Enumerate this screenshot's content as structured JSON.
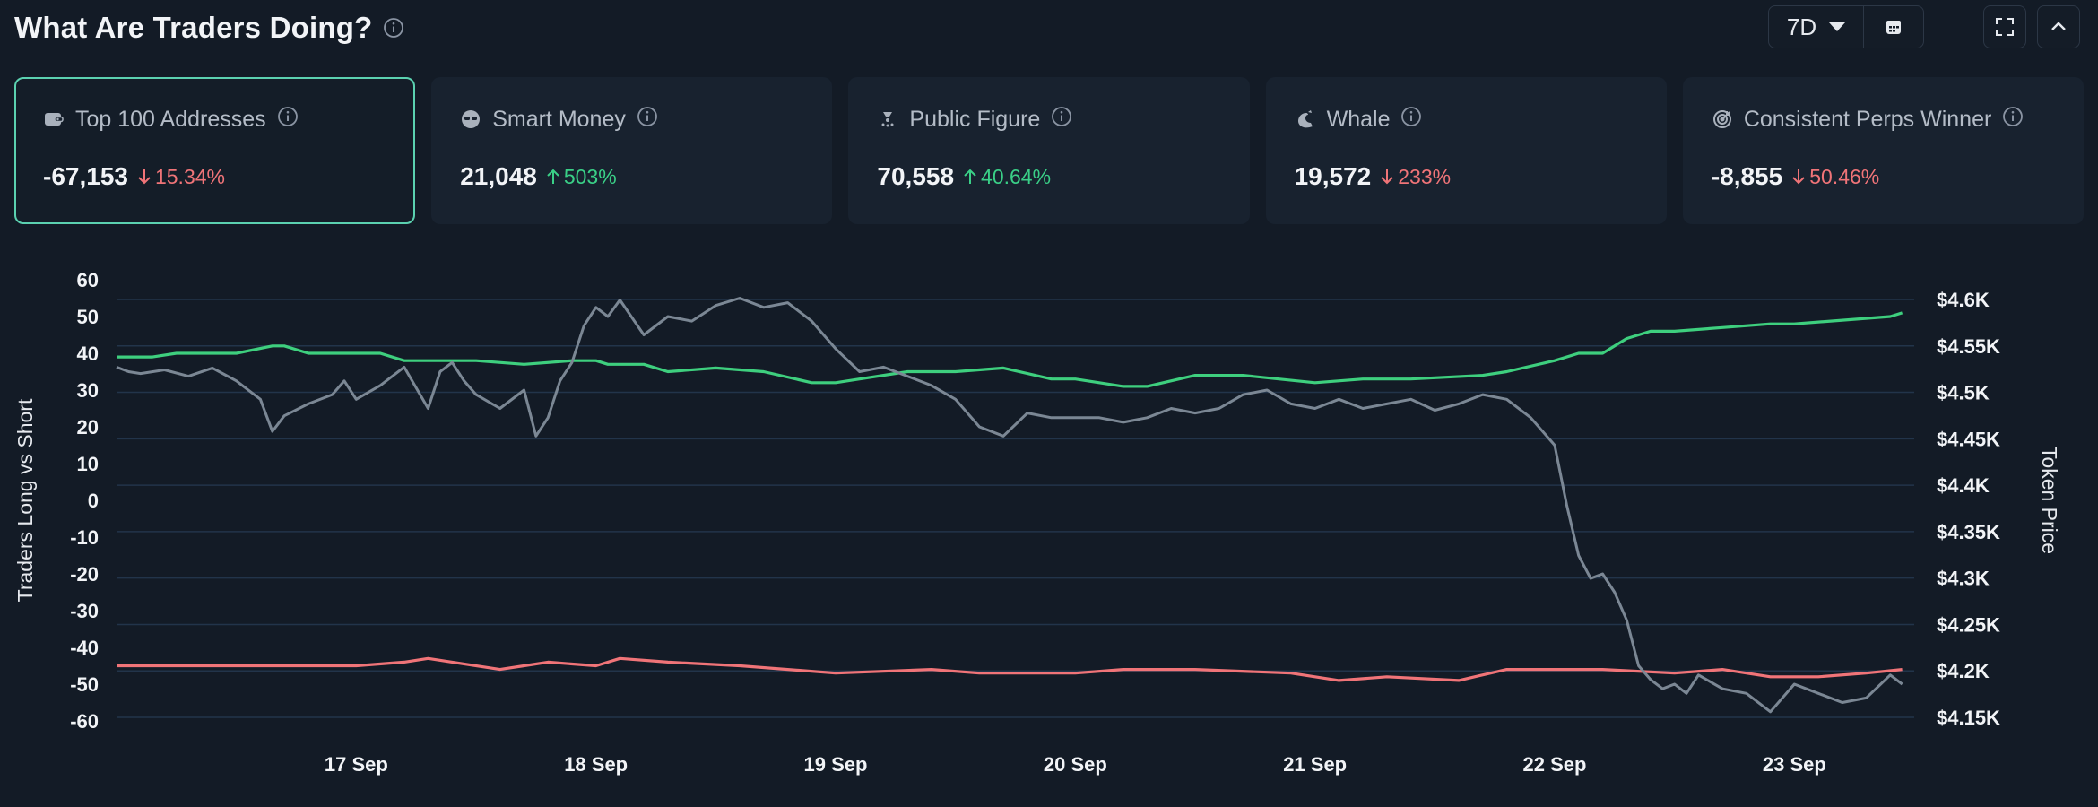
{
  "header": {
    "title": "What Are Traders Doing?",
    "range": "7D"
  },
  "colors": {
    "accent": "#5bd1b0",
    "up": "#3ad087",
    "down": "#f07478",
    "long_line": "#3ecf7e",
    "short_line": "#f07478",
    "price_line": "#7b8794",
    "grid": "#22344a"
  },
  "cards": [
    {
      "label": "Top 100 Addresses",
      "icon": "wallet-icon",
      "value": "-67,153",
      "change": "15.34%",
      "direction": "down",
      "active": true
    },
    {
      "label": "Smart Money",
      "icon": "sunglasses-icon",
      "value": "21,048",
      "change": "503%",
      "direction": "up",
      "active": false
    },
    {
      "label": "Public Figure",
      "icon": "spotlight-icon",
      "value": "70,558",
      "change": "40.64%",
      "direction": "up",
      "active": false
    },
    {
      "label": "Whale",
      "icon": "whale-icon",
      "value": "19,572",
      "change": "233%",
      "direction": "down",
      "active": false
    },
    {
      "label": "Consistent Perps Winner",
      "icon": "target-icon",
      "value": "-8,855",
      "change": "50.46%",
      "direction": "down",
      "active": false
    }
  ],
  "chart_data": {
    "type": "line",
    "ylabel": "Traders Long vs Short",
    "y2label": "Token Price",
    "yticks": [
      "60",
      "50",
      "40",
      "30",
      "20",
      "10",
      "0",
      "-10",
      "-20",
      "-30",
      "-40",
      "-50",
      "-60"
    ],
    "y2ticks": [
      "$4.6K",
      "$4.55K",
      "$4.5K",
      "$4.45K",
      "$4.4K",
      "$4.35K",
      "$4.3K",
      "$4.25K",
      "$4.2K",
      "$4.15K"
    ],
    "xticks": [
      "17 Sep",
      "18 Sep",
      "19 Sep",
      "20 Sep",
      "21 Sep",
      "22 Sep",
      "23 Sep"
    ],
    "ylim": [
      -60,
      60
    ],
    "y2lim": [
      4140,
      4620
    ],
    "x_range": [
      0,
      7.5
    ],
    "x_tick_positions": [
      1,
      2,
      3,
      4,
      5,
      6,
      7
    ],
    "grid": true,
    "series": [
      {
        "name": "Long",
        "axis": "left",
        "color": "#3ecf7e",
        "x": [
          0,
          0.15,
          0.25,
          0.5,
          0.65,
          0.7,
          0.8,
          0.9,
          1.1,
          1.2,
          1.5,
          1.7,
          1.9,
          2.0,
          2.05,
          2.2,
          2.3,
          2.5,
          2.7,
          2.9,
          3.0,
          3.1,
          3.3,
          3.5,
          3.7,
          3.9,
          4.0,
          4.2,
          4.3,
          4.5,
          4.7,
          5.0,
          5.2,
          5.4,
          5.7,
          5.8,
          6.0,
          6.1,
          6.2,
          6.3,
          6.4,
          6.5,
          6.7,
          6.9,
          7.0,
          7.2,
          7.4,
          7.45
        ],
        "y": [
          39,
          39,
          40,
          40,
          42,
          42,
          40,
          40,
          40,
          38,
          38,
          37,
          38,
          38,
          37,
          37,
          35,
          36,
          35,
          32,
          32,
          33,
          35,
          35,
          36,
          33,
          33,
          31,
          31,
          34,
          34,
          32,
          33,
          33,
          34,
          35,
          38,
          40,
          40,
          44,
          46,
          46,
          47,
          48,
          48,
          49,
          50,
          51
        ]
      },
      {
        "name": "Short",
        "axis": "left",
        "color": "#f07478",
        "x": [
          0,
          0.5,
          1.0,
          1.2,
          1.3,
          1.4,
          1.6,
          1.7,
          1.8,
          2.0,
          2.1,
          2.3,
          2.6,
          3.0,
          3.4,
          3.6,
          4.0,
          4.2,
          4.5,
          4.9,
          5.1,
          5.3,
          5.6,
          5.8,
          6.0,
          6.2,
          6.5,
          6.7,
          6.9,
          7.1,
          7.3,
          7.45
        ],
        "y": [
          -45,
          -45,
          -45,
          -44,
          -43,
          -44,
          -46,
          -45,
          -44,
          -45,
          -43,
          -44,
          -45,
          -47,
          -46,
          -47,
          -47,
          -46,
          -46,
          -47,
          -49,
          -48,
          -49,
          -46,
          -46,
          -46,
          -47,
          -46,
          -48,
          -48,
          -47,
          -46
        ]
      },
      {
        "name": "Price",
        "axis": "right",
        "color": "#7b8794",
        "x": [
          0,
          0.05,
          0.1,
          0.2,
          0.3,
          0.4,
          0.5,
          0.6,
          0.65,
          0.7,
          0.8,
          0.9,
          0.95,
          1.0,
          1.1,
          1.2,
          1.3,
          1.35,
          1.4,
          1.45,
          1.5,
          1.6,
          1.7,
          1.75,
          1.8,
          1.85,
          1.9,
          1.95,
          2.0,
          2.05,
          2.1,
          2.2,
          2.3,
          2.4,
          2.5,
          2.6,
          2.7,
          2.8,
          2.9,
          3.0,
          3.1,
          3.2,
          3.3,
          3.4,
          3.5,
          3.6,
          3.7,
          3.8,
          3.9,
          4.0,
          4.1,
          4.2,
          4.3,
          4.4,
          4.5,
          4.6,
          4.7,
          4.8,
          4.9,
          5.0,
          5.1,
          5.2,
          5.3,
          5.4,
          5.5,
          5.6,
          5.7,
          5.8,
          5.9,
          6.0,
          6.05,
          6.1,
          6.15,
          6.2,
          6.25,
          6.3,
          6.35,
          6.4,
          6.45,
          6.5,
          6.55,
          6.6,
          6.7,
          6.8,
          6.9,
          7.0,
          7.1,
          7.2,
          7.3,
          7.4,
          7.45
        ],
        "y": [
          4525,
          4520,
          4518,
          4522,
          4515,
          4524,
          4510,
          4490,
          4455,
          4472,
          4485,
          4495,
          4510,
          4490,
          4505,
          4525,
          4480,
          4520,
          4530,
          4510,
          4495,
          4480,
          4500,
          4450,
          4470,
          4510,
          4530,
          4570,
          4590,
          4580,
          4598,
          4560,
          4580,
          4575,
          4592,
          4600,
          4590,
          4595,
          4575,
          4545,
          4520,
          4525,
          4515,
          4505,
          4490,
          4460,
          4450,
          4475,
          4470,
          4470,
          4470,
          4465,
          4470,
          4480,
          4475,
          4480,
          4495,
          4500,
          4485,
          4480,
          4490,
          4480,
          4485,
          4490,
          4478,
          4485,
          4495,
          4490,
          4470,
          4440,
          4375,
          4320,
          4295,
          4300,
          4280,
          4250,
          4200,
          4185,
          4175,
          4180,
          4170,
          4190,
          4175,
          4170,
          4150,
          4180,
          4170,
          4160,
          4165,
          4190,
          4180
        ]
      }
    ]
  }
}
